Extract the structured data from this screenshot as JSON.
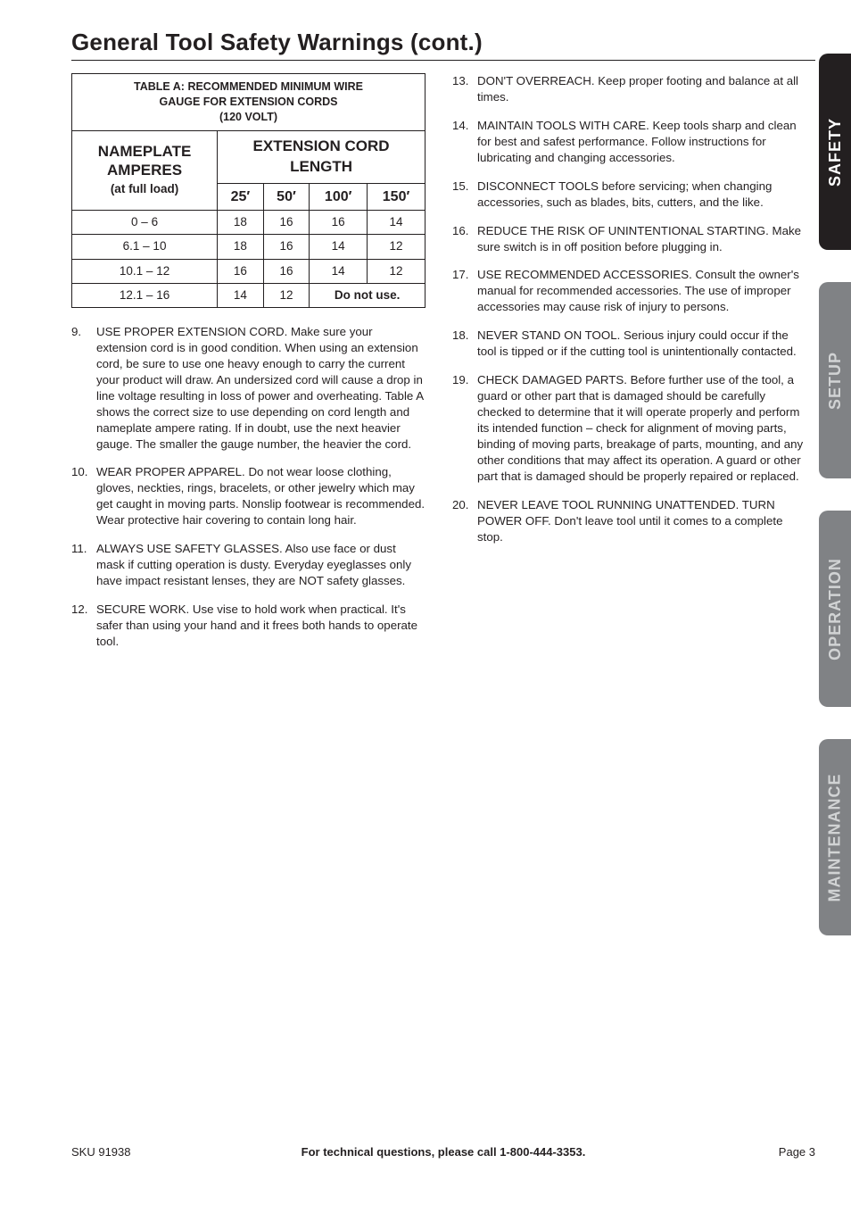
{
  "title": "General Tool Safety Warnings (cont.)",
  "table": {
    "caption_l1": "TABLE A:  RECOMMENDED MINIMUM WIRE",
    "caption_l2": "GAUGE FOR EXTENSION CORDS",
    "caption_l3": "(120 VOLT)",
    "nameplate_l1": "NAMEPLATE",
    "nameplate_l2": "AMPERES",
    "fullload": "(at full load)",
    "ext_l1": "EXTENSION CORD",
    "ext_l2": "LENGTH",
    "len_heads": [
      "25′",
      "50′",
      "100′",
      "150′"
    ],
    "rows": [
      {
        "range": "0 – 6",
        "v": [
          "18",
          "16",
          "16",
          "14"
        ]
      },
      {
        "range": "6.1 – 10",
        "v": [
          "18",
          "16",
          "14",
          "12"
        ]
      },
      {
        "range": "10.1 – 12",
        "v": [
          "16",
          "16",
          "14",
          "12"
        ]
      }
    ],
    "last_range": "12.1 – 16",
    "last_v1": "14",
    "last_v2": "12",
    "donot": "Do not use.",
    "border_color": "#231f20",
    "cell_fontsize": 13.5,
    "header_fontsize": 17
  },
  "left_items": [
    {
      "n": "9.",
      "t": "USE PROPER EXTENSION CORD. Make sure your extension cord is in good condition. When using an extension cord, be sure to use one heavy enough to carry the current your product will draw. An undersized cord will cause a drop in line voltage resulting in loss of power and overheating. Table A shows the correct size to use depending on cord length and nameplate ampere rating. If in doubt, use the next heavier gauge. The smaller the gauge number, the heavier the cord."
    },
    {
      "n": "10.",
      "t": "WEAR PROPER APPAREL. Do not wear loose clothing, gloves, neckties, rings, bracelets, or other jewelry which may get caught in moving parts. Nonslip footwear is recommended. Wear protective hair covering to contain long hair."
    },
    {
      "n": "11.",
      "t": "ALWAYS USE SAFETY GLASSES. Also use face or dust mask if cutting operation is dusty. Everyday eyeglasses only have impact resistant lenses, they are NOT safety glasses."
    },
    {
      "n": "12.",
      "t": "SECURE WORK. Use vise to hold work when practical. It's safer than using your hand and it frees both hands to operate tool."
    }
  ],
  "right_items": [
    {
      "n": "13.",
      "t": "DON'T OVERREACH. Keep proper footing and balance at all times."
    },
    {
      "n": "14.",
      "t": "MAINTAIN TOOLS WITH CARE. Keep tools sharp and clean for best and safest performance. Follow instructions for lubricating and changing accessories."
    },
    {
      "n": "15.",
      "t": "DISCONNECT TOOLS before servicing; when changing accessories, such as blades, bits, cutters, and the like."
    },
    {
      "n": "16.",
      "t": "REDUCE THE RISK OF UNINTENTIONAL STARTING. Make sure switch is in off position before plugging in."
    },
    {
      "n": "17.",
      "t": "USE RECOMMENDED ACCESSORIES. Consult the owner's manual for recommended accessories. The use of improper accessories may cause risk of injury to persons."
    },
    {
      "n": "18.",
      "t": "NEVER STAND ON TOOL. Serious injury could occur if the tool is tipped or if the cutting tool is unintentionally contacted."
    },
    {
      "n": "19.",
      "t": "CHECK DAMAGED PARTS. Before further use of the tool, a guard or other part that is damaged should be carefully checked to determine that it will operate properly and perform its intended function – check for alignment of moving parts, binding of moving parts, breakage of parts, mounting, and any other conditions that may affect its operation. A guard or other part that is damaged should be properly repaired or replaced."
    },
    {
      "n": "20.",
      "t": "NEVER LEAVE TOOL RUNNING UNATTENDED. TURN POWER OFF. Don't leave tool until it comes to a complete stop."
    }
  ],
  "tabs": [
    {
      "label": "SAFETY",
      "bg": "#231f20",
      "fg": "#ffffff"
    },
    {
      "label": "SETUP",
      "bg": "#808285",
      "fg": "#d1d3d4"
    },
    {
      "label": "OPERATION",
      "bg": "#808285",
      "fg": "#d1d3d4"
    },
    {
      "label": "MAINTENANCE",
      "bg": "#808285",
      "fg": "#d1d3d4"
    }
  ],
  "footer": {
    "left": "SKU 91938",
    "center": "For technical questions, please call 1-800-444-3353.",
    "right": "Page 3"
  },
  "colors": {
    "text": "#231f20",
    "bg": "#ffffff",
    "tab_active_bg": "#231f20",
    "tab_inactive_bg": "#808285",
    "tab_active_fg": "#ffffff",
    "tab_inactive_fg": "#d1d3d4"
  },
  "typography": {
    "body_fontsize": 13.3,
    "title_fontsize": 26,
    "tab_fontsize": 18,
    "font_family": "Arial, Helvetica, sans-serif"
  }
}
